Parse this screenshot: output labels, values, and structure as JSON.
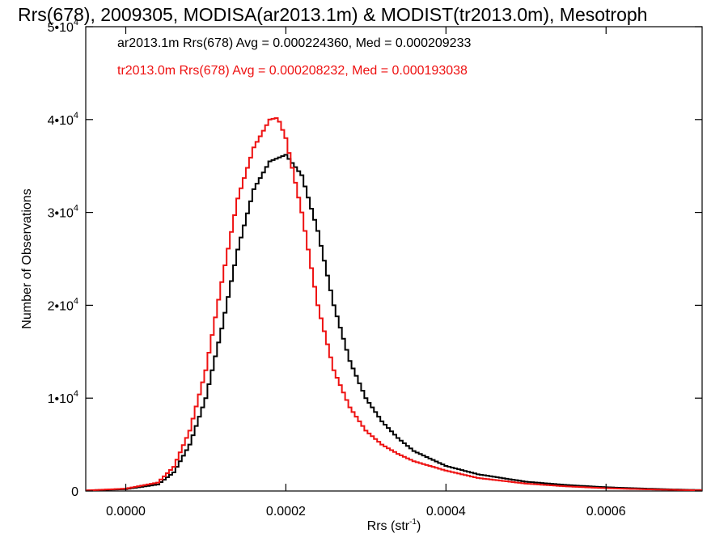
{
  "chart_data": {
    "type": "line",
    "title": "Rrs(678), 2009305, MODISA(ar2013.1m) & MODIST(tr2013.0m), Mesotroph",
    "xlabel_base": "Rrs (str",
    "xlabel_sup": "-1",
    "xlabel_close": ")",
    "ylabel": "Number of Observations",
    "xlim": [
      -5e-05,
      0.00072
    ],
    "ylim": [
      0,
      50000
    ],
    "x_ticks": [
      {
        "value": 0.0,
        "label": "0.0000"
      },
      {
        "value": 0.0002,
        "label": "0.0002"
      },
      {
        "value": 0.0004,
        "label": "0.0004"
      },
      {
        "value": 0.0006,
        "label": "0.0006"
      }
    ],
    "y_ticks": [
      {
        "value": 0,
        "label": "0",
        "exp": ""
      },
      {
        "value": 10000,
        "label": "1•10",
        "exp": "4"
      },
      {
        "value": 20000,
        "label": "2•10",
        "exp": "4"
      },
      {
        "value": 30000,
        "label": "3•10",
        "exp": "4"
      },
      {
        "value": 40000,
        "label": "4•10",
        "exp": "4"
      },
      {
        "value": 50000,
        "label": "5•10",
        "exp": "4"
      }
    ],
    "grid": false,
    "legend_position": "top-left",
    "series": [
      {
        "name": "ar2013.1m",
        "label": "ar2013.1m Rrs(678) Avg = 0.000224360, Med = 0.000209233",
        "color": "#000000",
        "x": [
          -5e-05,
          0.0,
          4e-05,
          6e-05,
          8e-05,
          0.0001,
          0.00012,
          0.00014,
          0.00016,
          0.00018,
          0.0002,
          0.00022,
          0.00024,
          0.00026,
          0.00028,
          0.0003,
          0.00032,
          0.00034,
          0.00036,
          0.0004,
          0.00044,
          0.0005,
          0.00055,
          0.0006,
          0.00065,
          0.0007,
          0.00072
        ],
        "y": [
          60,
          200,
          700,
          2000,
          5000,
          10000,
          17500,
          26000,
          32500,
          35500,
          36200,
          34000,
          28000,
          20000,
          14000,
          10000,
          7500,
          5700,
          4300,
          2700,
          1800,
          1000,
          650,
          400,
          250,
          130,
          100
        ]
      },
      {
        "name": "tr2013.0m",
        "label": "tr2013.0m Rrs(678) Avg = 0.000208232, Med = 0.000193038",
        "color": "#ee1111",
        "x": [
          -5e-05,
          0.0,
          4e-05,
          6e-05,
          8e-05,
          0.0001,
          0.00012,
          0.00014,
          0.00016,
          0.00018,
          0.00019,
          0.0002,
          0.00022,
          0.00024,
          0.00026,
          0.00028,
          0.0003,
          0.00032,
          0.00034,
          0.00036,
          0.0004,
          0.00044,
          0.0005,
          0.00055,
          0.0006,
          0.00065,
          0.0007,
          0.00072
        ],
        "y": [
          60,
          250,
          900,
          2600,
          6500,
          13000,
          22500,
          31500,
          37000,
          40000,
          40200,
          38000,
          30000,
          20000,
          13000,
          9000,
          6500,
          5000,
          4000,
          3200,
          2200,
          1400,
          800,
          500,
          300,
          180,
          100,
          80
        ]
      }
    ]
  }
}
